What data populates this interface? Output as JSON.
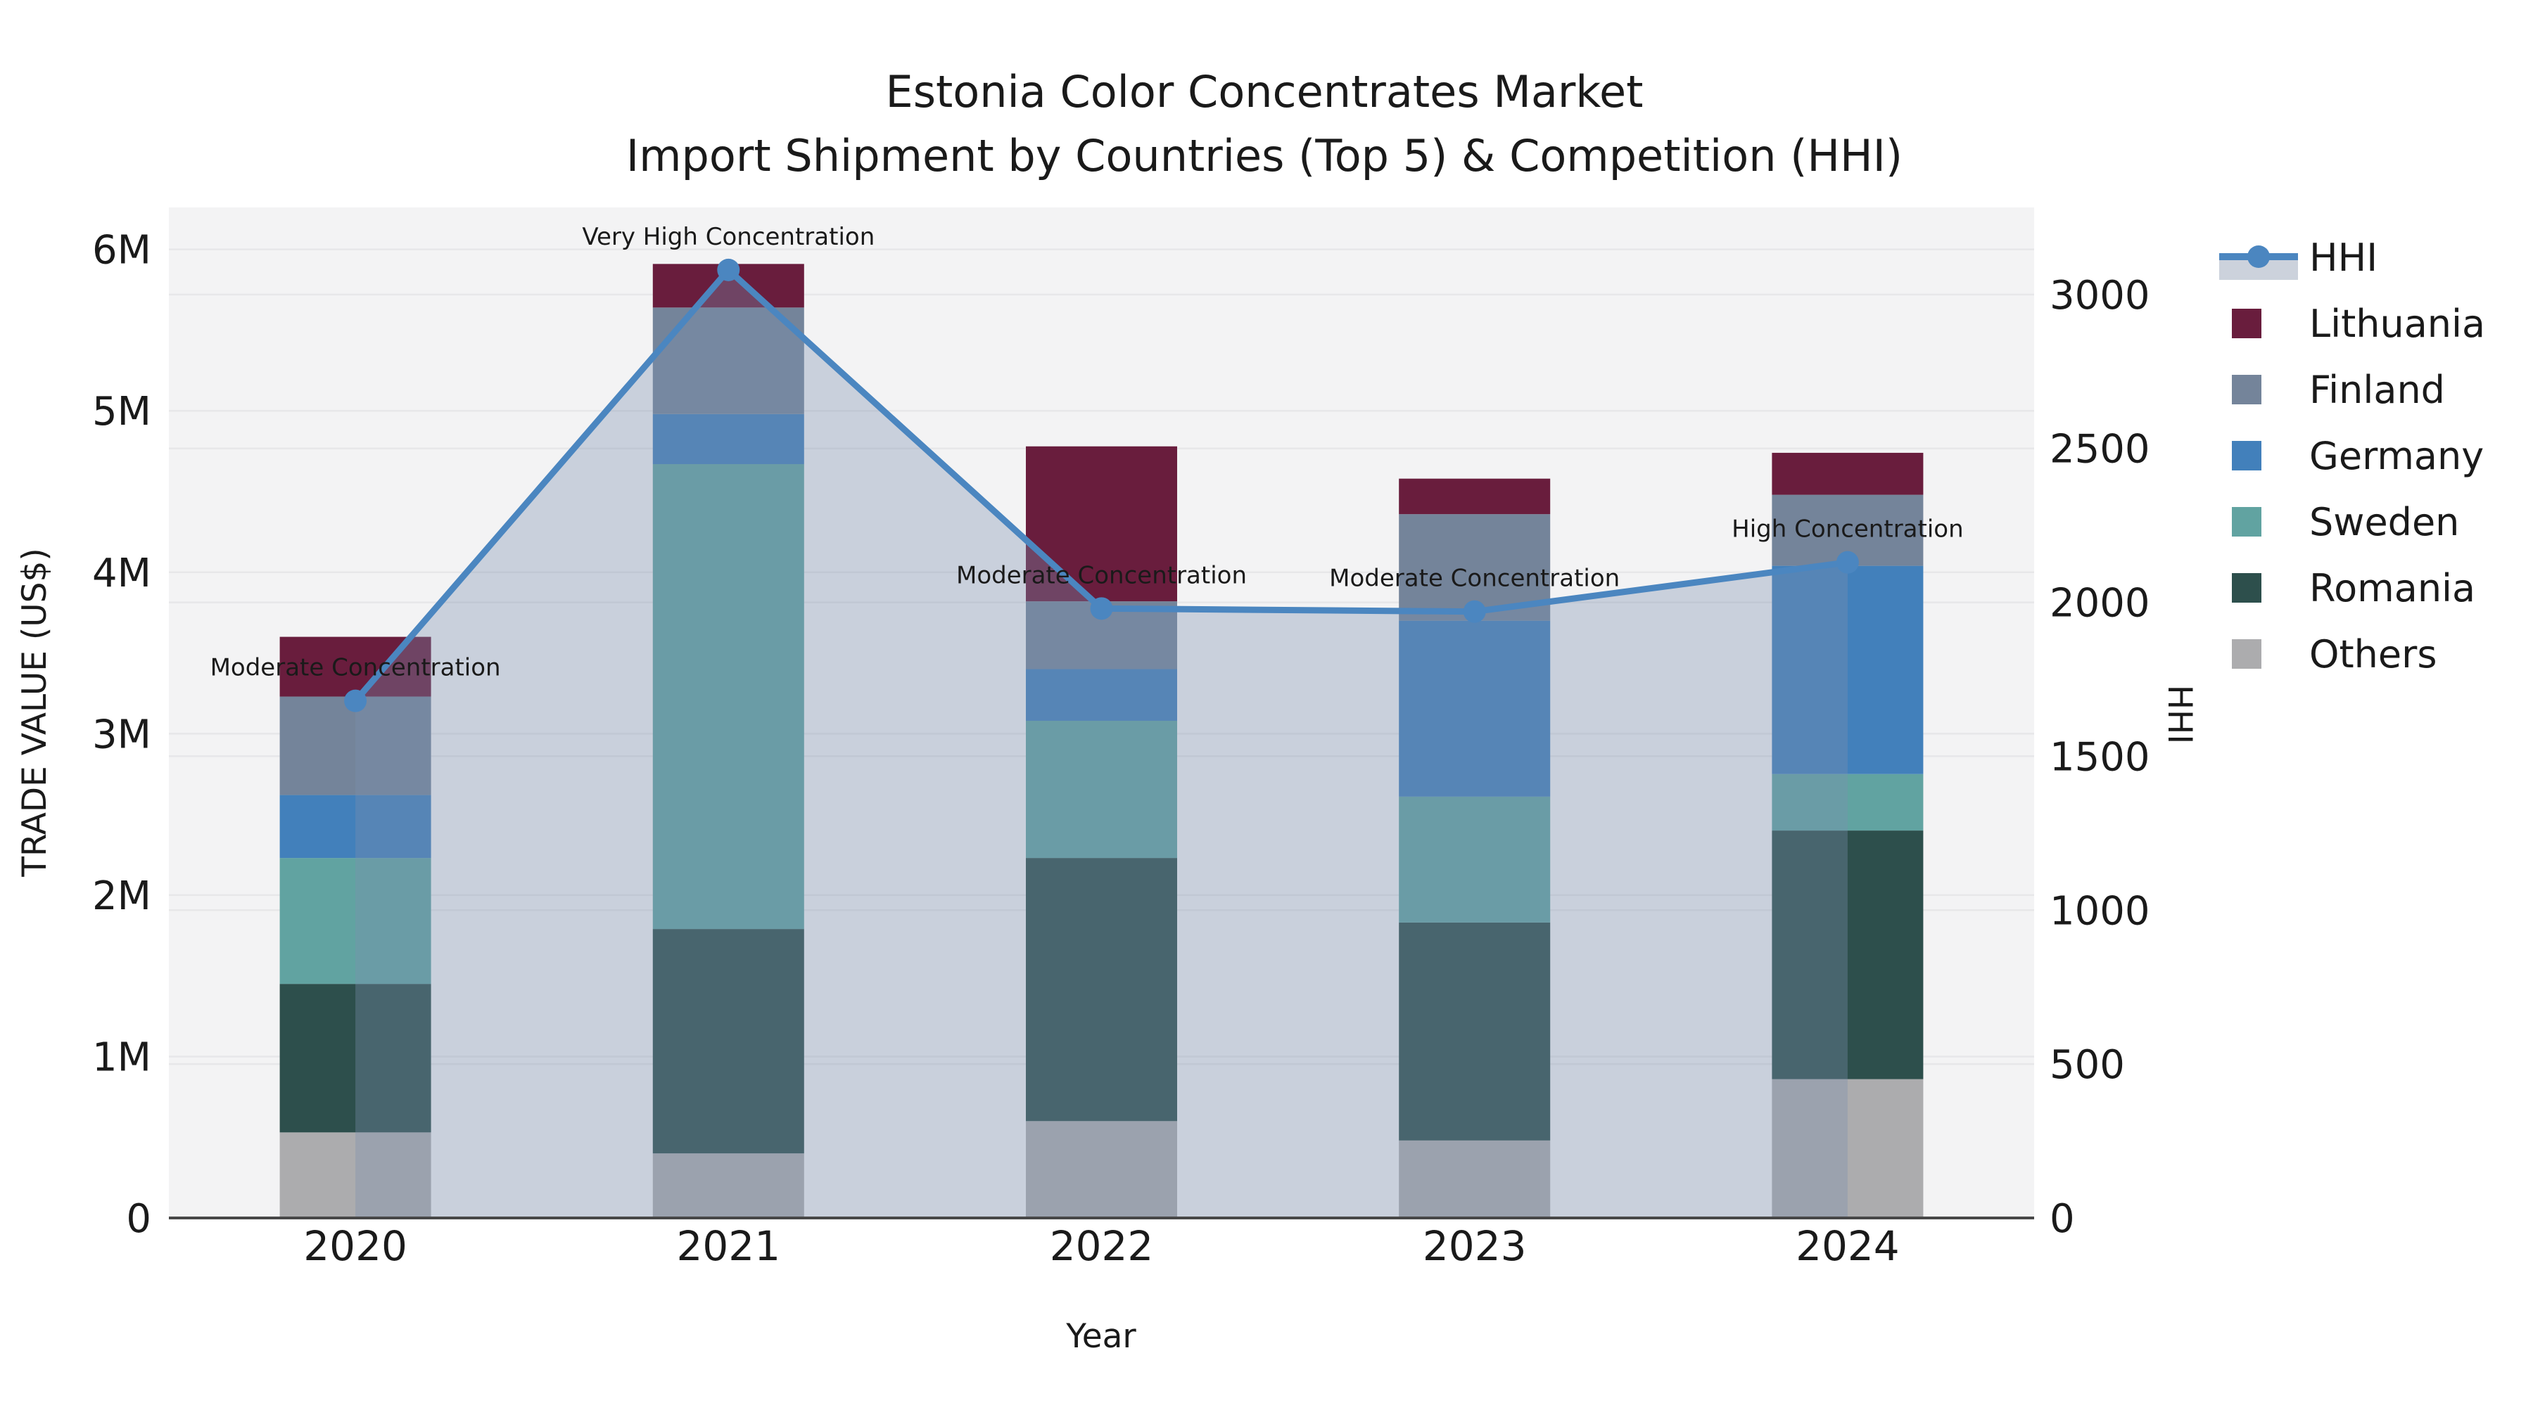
{
  "title": {
    "line1": "Estonia Color Concentrates Market",
    "line2": "Import Shipment by Countries (Top 5) & Competition (HHI)"
  },
  "chart_data": {
    "type": "bar+line",
    "categories": [
      "2020",
      "2021",
      "2022",
      "2023",
      "2024"
    ],
    "xlabel": "Year",
    "ylabel_left": "TRADE VALUE (US$)",
    "ylabel_right": "HHI",
    "y_left_ticks": [
      {
        "value": 0,
        "label": "0"
      },
      {
        "value": 1000000,
        "label": "1M"
      },
      {
        "value": 2000000,
        "label": "2M"
      },
      {
        "value": 3000000,
        "label": "3M"
      },
      {
        "value": 4000000,
        "label": "4M"
      },
      {
        "value": 5000000,
        "label": "5M"
      },
      {
        "value": 6000000,
        "label": "6M"
      }
    ],
    "y_right_ticks": [
      {
        "value": 0,
        "label": "0"
      },
      {
        "value": 500,
        "label": "500"
      },
      {
        "value": 1000,
        "label": "1000"
      },
      {
        "value": 1500,
        "label": "1500"
      },
      {
        "value": 2000,
        "label": "2000"
      },
      {
        "value": 2500,
        "label": "2500"
      },
      {
        "value": 3000,
        "label": "3000"
      }
    ],
    "ylim_left_usd": [
      0,
      6260000
    ],
    "ylim_right_hhi": [
      0,
      3283
    ],
    "grid": true,
    "legend_position": "upper right outside",
    "series": [
      {
        "name": "Others",
        "color": "#acacae",
        "values": [
          530000,
          400000,
          600000,
          480000,
          860000
        ]
      },
      {
        "name": "Romania",
        "color": "#2d4f4c",
        "values": [
          920000,
          1390000,
          1630000,
          1350000,
          1540000
        ]
      },
      {
        "name": "Sweden",
        "color": "#61a3a1",
        "values": [
          780000,
          2880000,
          850000,
          780000,
          350000
        ]
      },
      {
        "name": "Germany",
        "color": "#4280bb",
        "values": [
          390000,
          310000,
          320000,
          1090000,
          1290000
        ]
      },
      {
        "name": "Finland",
        "color": "#74849a",
        "values": [
          610000,
          660000,
          420000,
          660000,
          440000
        ]
      },
      {
        "name": "Lithuania",
        "color": "#691d3d",
        "values": [
          370000,
          270000,
          960000,
          220000,
          260000
        ]
      }
    ],
    "totals_usd": [
      3600000,
      5910000,
      4780000,
      4580000,
      4740000
    ],
    "hhi_line": {
      "name": "HHI",
      "color": "#4b86c0",
      "area_fill": "rgba(122,142,176,0.35)",
      "values": [
        1680,
        3080,
        1980,
        1970,
        2130
      ]
    },
    "annotations": [
      {
        "category": "2020",
        "text": "Moderate Concentration"
      },
      {
        "category": "2021",
        "text": "Very High Concentration"
      },
      {
        "category": "2022",
        "text": "Moderate Concentration"
      },
      {
        "category": "2023",
        "text": "Moderate Concentration"
      },
      {
        "category": "2024",
        "text": "High Concentration"
      }
    ],
    "legend": {
      "items": [
        {
          "label": "HHI",
          "type": "line",
          "line_color": "#4b86c0",
          "band_color": "#ccd2dc"
        },
        {
          "label": "Lithuania",
          "type": "swatch",
          "color": "#691d3d"
        },
        {
          "label": "Finland",
          "type": "swatch",
          "color": "#74849a"
        },
        {
          "label": "Germany",
          "type": "swatch",
          "color": "#4280bb"
        },
        {
          "label": "Sweden",
          "type": "swatch",
          "color": "#61a3a1"
        },
        {
          "label": "Romania",
          "type": "swatch",
          "color": "#2d4f4c"
        },
        {
          "label": "Others",
          "type": "swatch",
          "color": "#acacae"
        }
      ]
    },
    "colors": {
      "plot_background": "#f3f3f4",
      "figure_background": "#ffffff",
      "gridline": "#e7e7e9",
      "axis_spine": "#484848",
      "text": "#1a1a1a"
    }
  }
}
